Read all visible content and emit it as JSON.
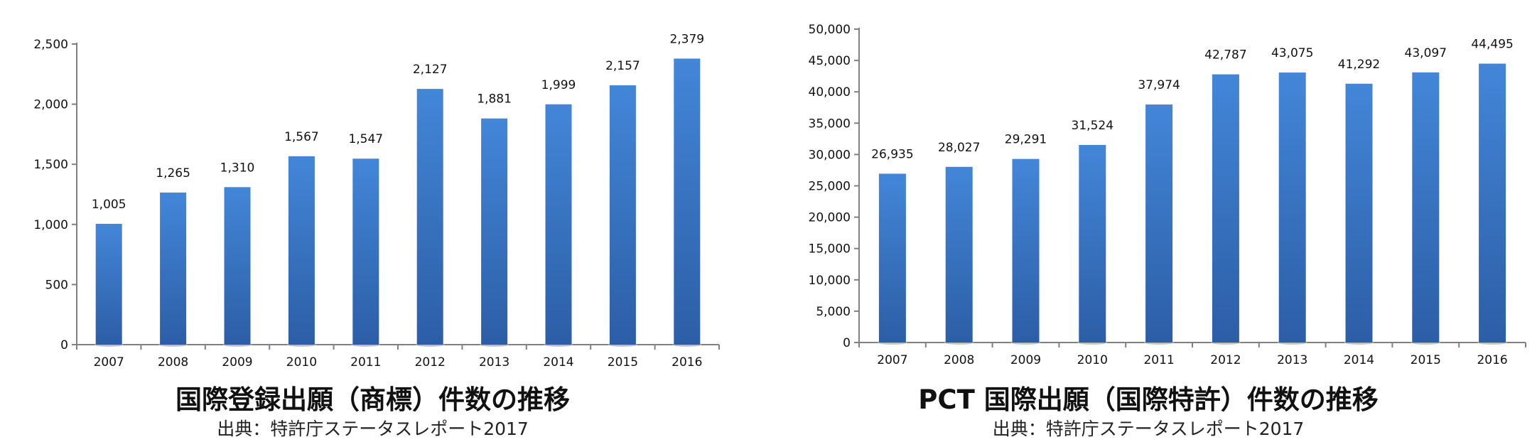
{
  "chart_data": [
    {
      "type": "bar",
      "title": "国際登録出願（商標）件数の推移",
      "source": "出典：特許庁ステータスレポート2017",
      "categories": [
        "2007",
        "2008",
        "2009",
        "2010",
        "2011",
        "2012",
        "2013",
        "2014",
        "2015",
        "2016"
      ],
      "values": [
        1005,
        1265,
        1310,
        1567,
        1547,
        2127,
        1881,
        1999,
        2157,
        2379
      ],
      "value_labels": [
        "1,005",
        "1,265",
        "1,310",
        "1,567",
        "1,547",
        "2,127",
        "1,881",
        "1,999",
        "2,157",
        "2,379"
      ],
      "ylim": [
        0,
        2500
      ],
      "yticks": [
        0,
        500,
        1000,
        1500,
        2000,
        2500
      ],
      "ytick_labels": [
        "0",
        "500",
        "1,000",
        "1,500",
        "2,000",
        "2,500"
      ],
      "xlabel": "",
      "ylabel": "",
      "grid": false,
      "legend": "none",
      "bar_color": "#3a78c8"
    },
    {
      "type": "bar",
      "title": "PCT 国際出願（国際特許）件数の推移",
      "source": "出典：特許庁ステータスレポート2017",
      "categories": [
        "2007",
        "2008",
        "2009",
        "2010",
        "2011",
        "2012",
        "2013",
        "2014",
        "2015",
        "2016"
      ],
      "values": [
        26935,
        28027,
        29291,
        31524,
        37974,
        42787,
        43075,
        41292,
        43097,
        44495
      ],
      "value_labels": [
        "26,935",
        "28,027",
        "29,291",
        "31,524",
        "37,974",
        "42,787",
        "43,075",
        "41,292",
        "43,097",
        "44,495"
      ],
      "ylim": [
        0,
        50000
      ],
      "yticks": [
        0,
        5000,
        10000,
        15000,
        20000,
        25000,
        30000,
        35000,
        40000,
        45000,
        50000
      ],
      "ytick_labels": [
        "0",
        "5,000",
        "10,000",
        "15,000",
        "20,000",
        "25,000",
        "30,000",
        "35,000",
        "40,000",
        "45,000",
        "50,000"
      ],
      "xlabel": "",
      "ylabel": "",
      "grid": false,
      "legend": "none",
      "bar_color": "#3a78c8"
    }
  ]
}
